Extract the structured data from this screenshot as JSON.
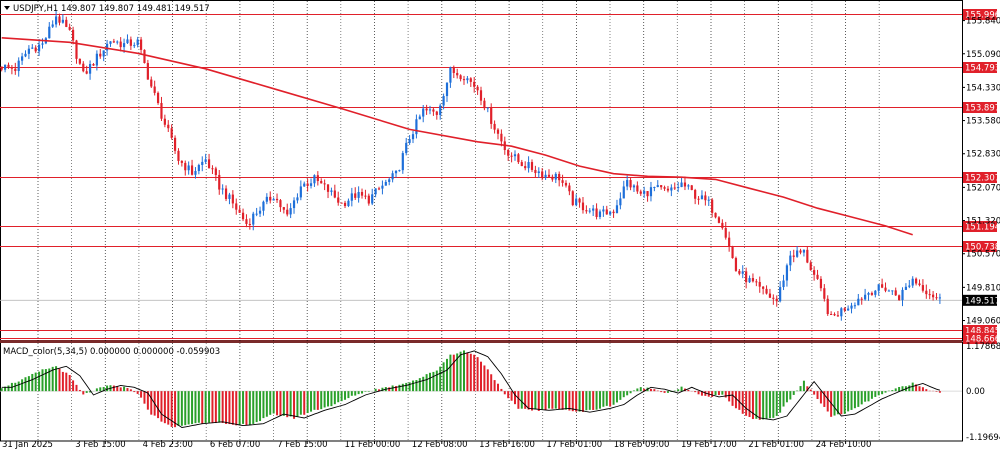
{
  "header": {
    "symbol_line": "USDJPY,H1  149.807 149.807 149.481 149.517",
    "menu_icon": "triangle-down-icon"
  },
  "indicator": {
    "label": "MACD_color(5,34,5) 0.000000 0.000000 -0.059903",
    "scale_top": "1.178681",
    "scale_zero": "0.00",
    "scale_bottom": "-1.196945"
  },
  "colors": {
    "bull_candle": "#1e6fd9",
    "bear_candle": "#e0202a",
    "ma_line": "#e0202a",
    "hline": "#e0202a",
    "macd_pos": "#2aa02a",
    "macd_neg": "#e0202a",
    "signal": "#000000",
    "grid": "#000000"
  },
  "chart_data": {
    "type": "line",
    "symbol": "USDJPY",
    "timeframe": "H1",
    "ylim": [
      148.62,
      156.26
    ],
    "y_ticks": [
      "155.840",
      "155.090",
      "154.330",
      "153.580",
      "152.830",
      "152.070",
      "151.320",
      "150.570",
      "149.810",
      "149.060"
    ],
    "y_tick_values": [
      155.84,
      155.09,
      154.33,
      153.58,
      152.83,
      152.07,
      151.32,
      150.57,
      149.81,
      149.06
    ],
    "x_labels": [
      "31 Jan 2025",
      "3 Feb 15:00",
      "4 Feb 23:00",
      "6 Feb 07:00",
      "7 Feb 15:00",
      "11 Feb 00:00",
      "12 Feb 08:00",
      "13 Feb 16:00",
      "17 Feb 01:00",
      "18 Feb 09:00",
      "19 Feb 17:00",
      "21 Feb 01:00",
      "24 Feb 10:00"
    ],
    "price_path": [
      [
        0,
        154.8
      ],
      [
        4,
        154.75
      ],
      [
        8,
        155.2
      ],
      [
        12,
        155.3
      ],
      [
        16,
        155.95
      ],
      [
        20,
        155.55
      ],
      [
        24,
        154.6
      ],
      [
        28,
        155.0
      ],
      [
        32,
        155.4
      ],
      [
        36,
        155.3
      ],
      [
        40,
        155.35
      ],
      [
        44,
        154.35
      ],
      [
        48,
        153.5
      ],
      [
        52,
        152.7
      ],
      [
        56,
        152.4
      ],
      [
        60,
        152.7
      ],
      [
        64,
        152.1
      ],
      [
        68,
        151.7
      ],
      [
        72,
        151.25
      ],
      [
        76,
        151.6
      ],
      [
        80,
        151.9
      ],
      [
        84,
        151.4
      ],
      [
        88,
        152.1
      ],
      [
        92,
        152.25
      ],
      [
        96,
        152.0
      ],
      [
        100,
        151.7
      ],
      [
        104,
        151.9
      ],
      [
        108,
        151.8
      ],
      [
        112,
        152.1
      ],
      [
        116,
        152.35
      ],
      [
        120,
        153.2
      ],
      [
        124,
        153.8
      ],
      [
        128,
        153.75
      ],
      [
        132,
        154.7
      ],
      [
        136,
        154.6
      ],
      [
        140,
        154.3
      ],
      [
        144,
        153.6
      ],
      [
        148,
        152.95
      ],
      [
        152,
        152.65
      ],
      [
        156,
        152.5
      ],
      [
        160,
        152.35
      ],
      [
        164,
        152.3
      ],
      [
        168,
        151.75
      ],
      [
        172,
        151.6
      ],
      [
        176,
        151.45
      ],
      [
        180,
        151.55
      ],
      [
        184,
        152.2
      ],
      [
        188,
        151.9
      ],
      [
        192,
        152.05
      ],
      [
        196,
        151.95
      ],
      [
        200,
        152.15
      ],
      [
        204,
        151.9
      ],
      [
        208,
        151.7
      ],
      [
        212,
        151.25
      ],
      [
        216,
        150.2
      ],
      [
        220,
        149.95
      ],
      [
        224,
        149.7
      ],
      [
        228,
        149.5
      ],
      [
        232,
        150.55
      ],
      [
        236,
        150.6
      ],
      [
        240,
        149.9
      ],
      [
        244,
        149.1
      ],
      [
        248,
        149.35
      ],
      [
        252,
        149.55
      ],
      [
        256,
        149.75
      ],
      [
        260,
        149.8
      ],
      [
        264,
        149.6
      ],
      [
        268,
        150.0
      ],
      [
        272,
        149.75
      ],
      [
        276,
        149.52
      ]
    ],
    "moving_average": [
      [
        0,
        155.45
      ],
      [
        20,
        155.35
      ],
      [
        40,
        155.1
      ],
      [
        60,
        154.75
      ],
      [
        80,
        154.3
      ],
      [
        100,
        153.85
      ],
      [
        120,
        153.38
      ],
      [
        140,
        153.1
      ],
      [
        150,
        153.0
      ],
      [
        160,
        152.8
      ],
      [
        170,
        152.55
      ],
      [
        180,
        152.38
      ],
      [
        190,
        152.32
      ],
      [
        200,
        152.3
      ],
      [
        210,
        152.25
      ],
      [
        220,
        152.05
      ],
      [
        230,
        151.85
      ],
      [
        240,
        151.6
      ],
      [
        250,
        151.4
      ],
      [
        260,
        151.2
      ],
      [
        268,
        151.0
      ]
    ],
    "horizontal_levels": [
      {
        "label": "155.996",
        "value": 155.996
      },
      {
        "label": "154.793",
        "value": 154.793
      },
      {
        "label": "153.897",
        "value": 153.897
      },
      {
        "label": "152.307",
        "value": 152.307
      },
      {
        "label": "151.194",
        "value": 151.194
      },
      {
        "label": "150.738",
        "value": 150.738
      },
      {
        "label": "148.845",
        "value": 148.845
      },
      {
        "label": "148.666",
        "value": 148.666
      }
    ],
    "current_price": {
      "label": "149.517",
      "value": 149.517
    },
    "macd": {
      "ylim": [
        -1.196945,
        1.178681
      ],
      "hist_path": [
        [
          0,
          0.1
        ],
        [
          6,
          0.3
        ],
        [
          12,
          0.55
        ],
        [
          16,
          0.65
        ],
        [
          20,
          0.4
        ],
        [
          24,
          -0.1
        ],
        [
          28,
          0.05
        ],
        [
          32,
          0.15
        ],
        [
          36,
          0.1
        ],
        [
          40,
          -0.05
        ],
        [
          44,
          -0.6
        ],
        [
          50,
          -0.95
        ],
        [
          56,
          -0.85
        ],
        [
          62,
          -0.8
        ],
        [
          68,
          -0.9
        ],
        [
          74,
          -0.85
        ],
        [
          80,
          -0.6
        ],
        [
          86,
          -0.7
        ],
        [
          92,
          -0.5
        ],
        [
          98,
          -0.35
        ],
        [
          104,
          -0.1
        ],
        [
          110,
          0.05
        ],
        [
          116,
          0.15
        ],
        [
          122,
          0.3
        ],
        [
          128,
          0.55
        ],
        [
          132,
          0.95
        ],
        [
          136,
          1.05
        ],
        [
          140,
          0.9
        ],
        [
          144,
          0.45
        ],
        [
          148,
          -0.1
        ],
        [
          152,
          -0.45
        ],
        [
          158,
          -0.5
        ],
        [
          164,
          -0.45
        ],
        [
          170,
          -0.55
        ],
        [
          176,
          -0.45
        ],
        [
          180,
          -0.35
        ],
        [
          184,
          -0.1
        ],
        [
          188,
          0.1
        ],
        [
          192,
          0.05
        ],
        [
          196,
          -0.05
        ],
        [
          200,
          0.1
        ],
        [
          204,
          -0.05
        ],
        [
          208,
          -0.15
        ],
        [
          212,
          -0.1
        ],
        [
          216,
          -0.45
        ],
        [
          220,
          -0.7
        ],
        [
          224,
          -0.75
        ],
        [
          228,
          -0.65
        ],
        [
          232,
          -0.2
        ],
        [
          236,
          0.25
        ],
        [
          240,
          -0.2
        ],
        [
          244,
          -0.65
        ],
        [
          248,
          -0.6
        ],
        [
          252,
          -0.4
        ],
        [
          256,
          -0.2
        ],
        [
          260,
          -0.05
        ],
        [
          264,
          0.1
        ],
        [
          268,
          0.2
        ],
        [
          272,
          0.05
        ],
        [
          276,
          -0.05
        ]
      ]
    }
  }
}
